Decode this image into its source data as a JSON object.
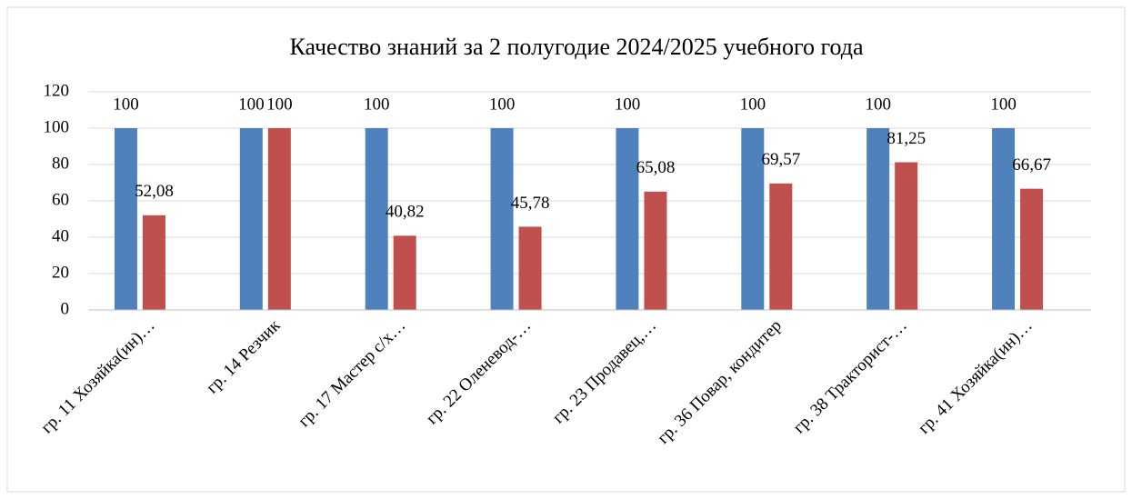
{
  "chart_data": {
    "type": "bar",
    "title": "Качество знаний за 2 полугодие 2024/2025 учебного года",
    "categories": [
      "гр. 11 Хозяйка(ин)…",
      "гр. 14 Резчик",
      "гр. 17 Мастер с/х…",
      "гр. 22 Оленевод-…",
      "гр. 23 Продавец,…",
      "гр. 36 Повар, кондитер",
      "гр. 38 Тракторист-…",
      "гр. 41 Хозяйка(ин)…"
    ],
    "series": [
      {
        "color": "#4f81bd",
        "values": [
          100,
          100,
          100,
          100,
          100,
          100,
          100,
          100
        ]
      },
      {
        "color": "#c0504d",
        "values": [
          52.08,
          100,
          40.82,
          45.78,
          65.08,
          69.57,
          81.25,
          66.67
        ],
        "value_labels": [
          "52,08",
          "100",
          "40,82",
          "45,78",
          "65,08",
          "69,57",
          "81,25",
          "66,67"
        ]
      }
    ],
    "ylim": [
      0,
      120
    ],
    "yticks": [
      0,
      20,
      40,
      60,
      80,
      100,
      120
    ],
    "grid": true
  }
}
